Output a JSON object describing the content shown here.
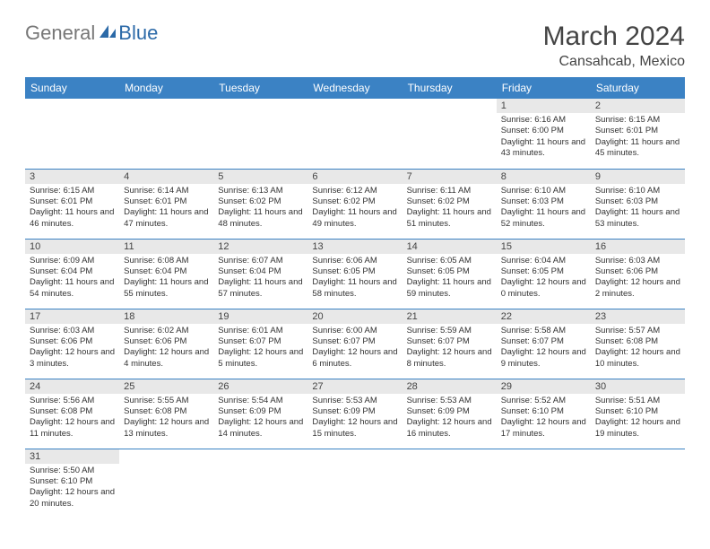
{
  "brand": {
    "part1": "General",
    "part2": "Blue"
  },
  "title": "March 2024",
  "location": "Cansahcab, Mexico",
  "header_bg": "#3b82c4",
  "dayname_bg": "#e8e8e8",
  "border_color": "#3b82c4",
  "weekdays": [
    "Sunday",
    "Monday",
    "Tuesday",
    "Wednesday",
    "Thursday",
    "Friday",
    "Saturday"
  ],
  "weeks": [
    [
      null,
      null,
      null,
      null,
      null,
      {
        "n": "1",
        "sr": "Sunrise: 6:16 AM",
        "ss": "Sunset: 6:00 PM",
        "dl": "Daylight: 11 hours and 43 minutes."
      },
      {
        "n": "2",
        "sr": "Sunrise: 6:15 AM",
        "ss": "Sunset: 6:01 PM",
        "dl": "Daylight: 11 hours and 45 minutes."
      }
    ],
    [
      {
        "n": "3",
        "sr": "Sunrise: 6:15 AM",
        "ss": "Sunset: 6:01 PM",
        "dl": "Daylight: 11 hours and 46 minutes."
      },
      {
        "n": "4",
        "sr": "Sunrise: 6:14 AM",
        "ss": "Sunset: 6:01 PM",
        "dl": "Daylight: 11 hours and 47 minutes."
      },
      {
        "n": "5",
        "sr": "Sunrise: 6:13 AM",
        "ss": "Sunset: 6:02 PM",
        "dl": "Daylight: 11 hours and 48 minutes."
      },
      {
        "n": "6",
        "sr": "Sunrise: 6:12 AM",
        "ss": "Sunset: 6:02 PM",
        "dl": "Daylight: 11 hours and 49 minutes."
      },
      {
        "n": "7",
        "sr": "Sunrise: 6:11 AM",
        "ss": "Sunset: 6:02 PM",
        "dl": "Daylight: 11 hours and 51 minutes."
      },
      {
        "n": "8",
        "sr": "Sunrise: 6:10 AM",
        "ss": "Sunset: 6:03 PM",
        "dl": "Daylight: 11 hours and 52 minutes."
      },
      {
        "n": "9",
        "sr": "Sunrise: 6:10 AM",
        "ss": "Sunset: 6:03 PM",
        "dl": "Daylight: 11 hours and 53 minutes."
      }
    ],
    [
      {
        "n": "10",
        "sr": "Sunrise: 6:09 AM",
        "ss": "Sunset: 6:04 PM",
        "dl": "Daylight: 11 hours and 54 minutes."
      },
      {
        "n": "11",
        "sr": "Sunrise: 6:08 AM",
        "ss": "Sunset: 6:04 PM",
        "dl": "Daylight: 11 hours and 55 minutes."
      },
      {
        "n": "12",
        "sr": "Sunrise: 6:07 AM",
        "ss": "Sunset: 6:04 PM",
        "dl": "Daylight: 11 hours and 57 minutes."
      },
      {
        "n": "13",
        "sr": "Sunrise: 6:06 AM",
        "ss": "Sunset: 6:05 PM",
        "dl": "Daylight: 11 hours and 58 minutes."
      },
      {
        "n": "14",
        "sr": "Sunrise: 6:05 AM",
        "ss": "Sunset: 6:05 PM",
        "dl": "Daylight: 11 hours and 59 minutes."
      },
      {
        "n": "15",
        "sr": "Sunrise: 6:04 AM",
        "ss": "Sunset: 6:05 PM",
        "dl": "Daylight: 12 hours and 0 minutes."
      },
      {
        "n": "16",
        "sr": "Sunrise: 6:03 AM",
        "ss": "Sunset: 6:06 PM",
        "dl": "Daylight: 12 hours and 2 minutes."
      }
    ],
    [
      {
        "n": "17",
        "sr": "Sunrise: 6:03 AM",
        "ss": "Sunset: 6:06 PM",
        "dl": "Daylight: 12 hours and 3 minutes."
      },
      {
        "n": "18",
        "sr": "Sunrise: 6:02 AM",
        "ss": "Sunset: 6:06 PM",
        "dl": "Daylight: 12 hours and 4 minutes."
      },
      {
        "n": "19",
        "sr": "Sunrise: 6:01 AM",
        "ss": "Sunset: 6:07 PM",
        "dl": "Daylight: 12 hours and 5 minutes."
      },
      {
        "n": "20",
        "sr": "Sunrise: 6:00 AM",
        "ss": "Sunset: 6:07 PM",
        "dl": "Daylight: 12 hours and 6 minutes."
      },
      {
        "n": "21",
        "sr": "Sunrise: 5:59 AM",
        "ss": "Sunset: 6:07 PM",
        "dl": "Daylight: 12 hours and 8 minutes."
      },
      {
        "n": "22",
        "sr": "Sunrise: 5:58 AM",
        "ss": "Sunset: 6:07 PM",
        "dl": "Daylight: 12 hours and 9 minutes."
      },
      {
        "n": "23",
        "sr": "Sunrise: 5:57 AM",
        "ss": "Sunset: 6:08 PM",
        "dl": "Daylight: 12 hours and 10 minutes."
      }
    ],
    [
      {
        "n": "24",
        "sr": "Sunrise: 5:56 AM",
        "ss": "Sunset: 6:08 PM",
        "dl": "Daylight: 12 hours and 11 minutes."
      },
      {
        "n": "25",
        "sr": "Sunrise: 5:55 AM",
        "ss": "Sunset: 6:08 PM",
        "dl": "Daylight: 12 hours and 13 minutes."
      },
      {
        "n": "26",
        "sr": "Sunrise: 5:54 AM",
        "ss": "Sunset: 6:09 PM",
        "dl": "Daylight: 12 hours and 14 minutes."
      },
      {
        "n": "27",
        "sr": "Sunrise: 5:53 AM",
        "ss": "Sunset: 6:09 PM",
        "dl": "Daylight: 12 hours and 15 minutes."
      },
      {
        "n": "28",
        "sr": "Sunrise: 5:53 AM",
        "ss": "Sunset: 6:09 PM",
        "dl": "Daylight: 12 hours and 16 minutes."
      },
      {
        "n": "29",
        "sr": "Sunrise: 5:52 AM",
        "ss": "Sunset: 6:10 PM",
        "dl": "Daylight: 12 hours and 17 minutes."
      },
      {
        "n": "30",
        "sr": "Sunrise: 5:51 AM",
        "ss": "Sunset: 6:10 PM",
        "dl": "Daylight: 12 hours and 19 minutes."
      }
    ],
    [
      {
        "n": "31",
        "sr": "Sunrise: 5:50 AM",
        "ss": "Sunset: 6:10 PM",
        "dl": "Daylight: 12 hours and 20 minutes."
      },
      null,
      null,
      null,
      null,
      null,
      null
    ]
  ]
}
